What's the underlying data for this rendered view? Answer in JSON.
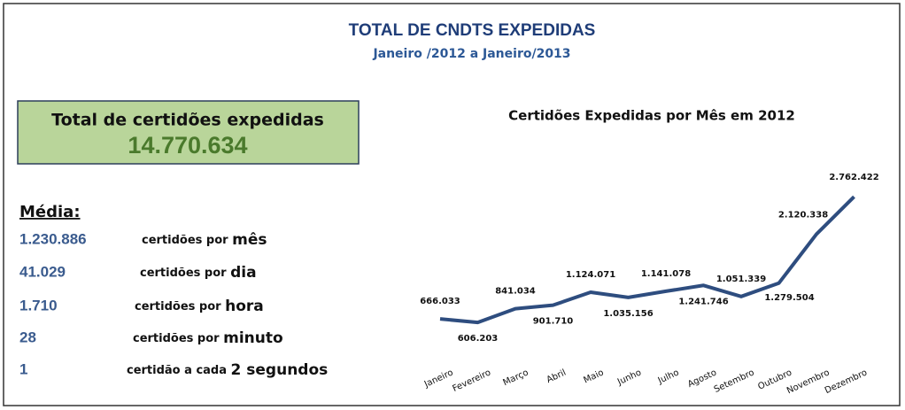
{
  "header": {
    "title": "TOTAL DE CNDTS EXPEDIDAS",
    "subtitle": "Janeiro /2012 a Janeiro/2013"
  },
  "summary": {
    "label": "Total de certidões expedidas",
    "value": "14.770.634"
  },
  "averages": {
    "heading": "Média:",
    "rows": [
      {
        "number": "1.230.886",
        "text": "certidões por ",
        "unit": "mês"
      },
      {
        "number": "41.029",
        "text": "certidões por ",
        "unit": "dia"
      },
      {
        "number": "1.710",
        "text": "certidões por ",
        "unit": "hora"
      },
      {
        "number": "28",
        "text": "certidões por ",
        "unit": "minuto"
      },
      {
        "number": "1",
        "text": "certidão a cada ",
        "unit": "2 segundos"
      }
    ]
  },
  "chart_data": {
    "type": "line",
    "title": "Certidões Expedidas por Mês em 2012",
    "categories": [
      "Janeiro",
      "Fevereiro",
      "Março",
      "Abril",
      "Maio",
      "Junho",
      "Julho",
      "Agosto",
      "Setembro",
      "Outubro",
      "Novembro",
      "Dezembro"
    ],
    "values": [
      666033,
      606203,
      841034,
      901710,
      1124071,
      1035156,
      1141078,
      1241746,
      1051339,
      1279504,
      2120338,
      2762422
    ],
    "value_labels": [
      "666.033",
      "606.203",
      "841.034",
      "901.710",
      "1.124.071",
      "1.035.156",
      "1.141.078",
      "1.241.746",
      "1.051.339",
      "1.279.504",
      "2.120.338",
      "2.762.422"
    ],
    "color": "#2e4d7f",
    "ylim": [
      0,
      3100000
    ]
  }
}
